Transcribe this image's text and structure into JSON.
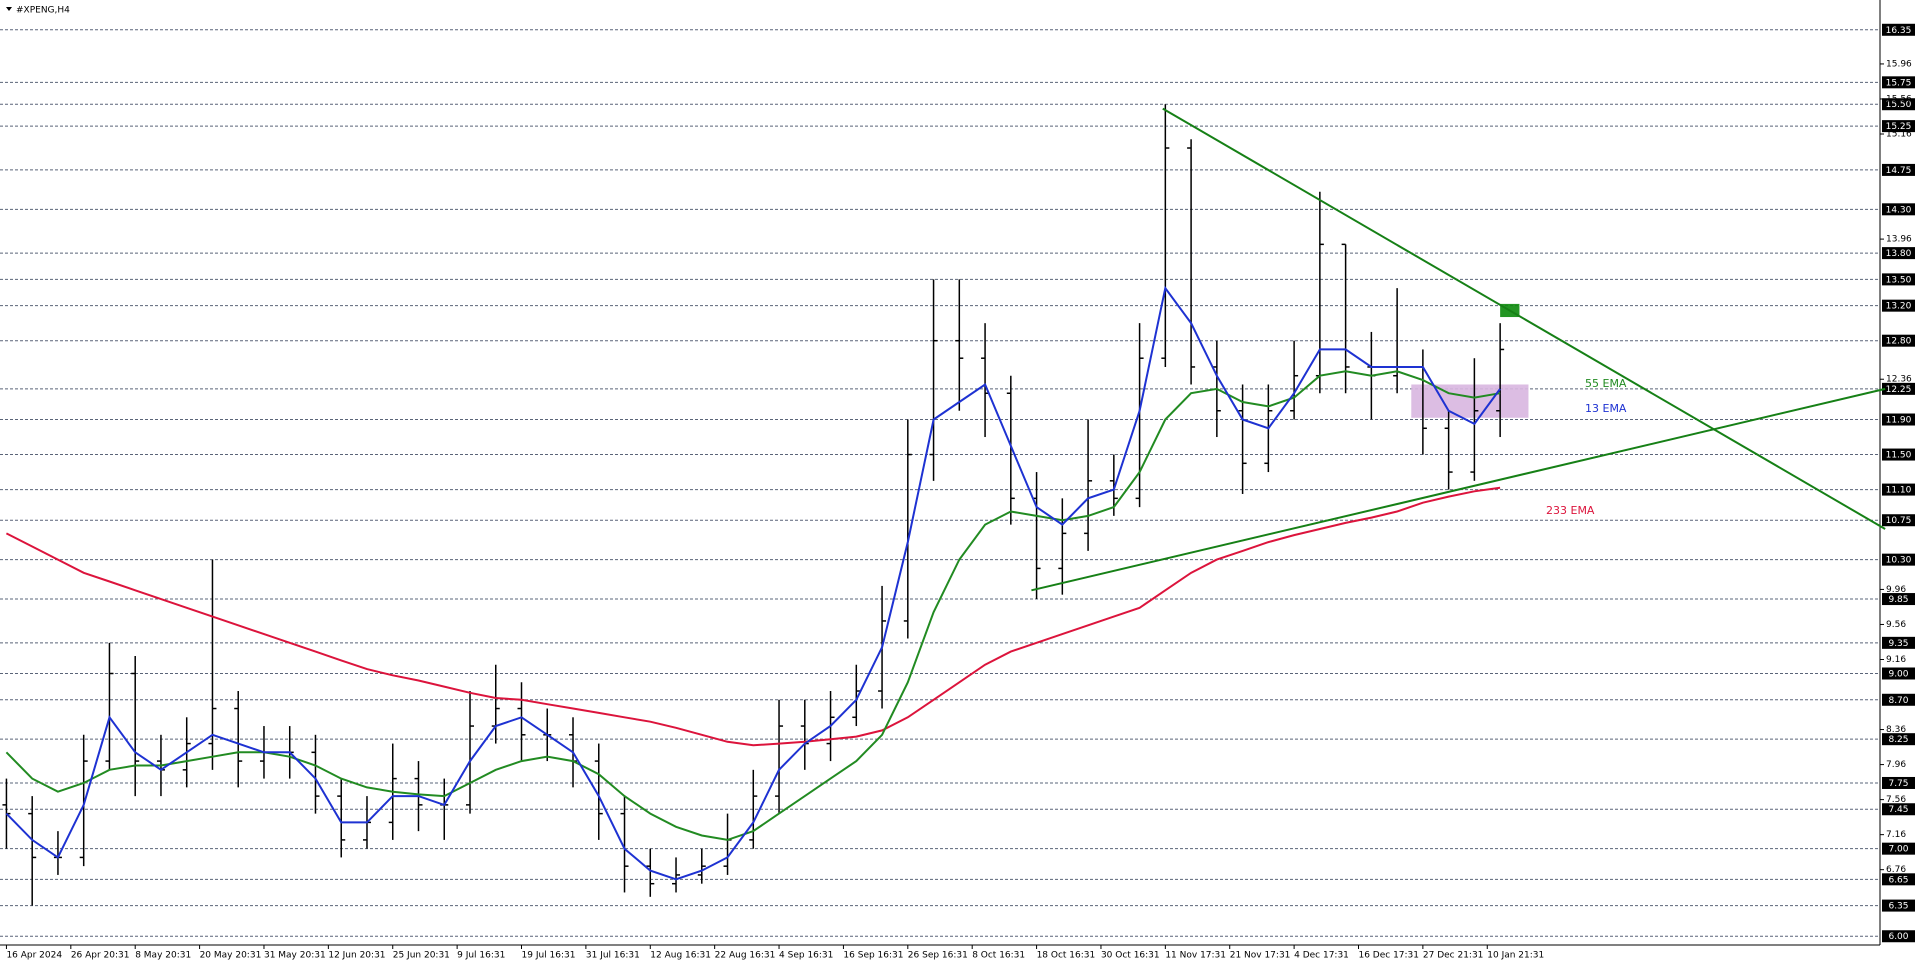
{
  "chart_data": {
    "type": "ohlc",
    "title": "#XPENG,H4",
    "x": [
      0,
      2,
      4,
      6,
      8,
      10,
      12,
      14,
      16,
      18,
      20,
      22,
      24,
      26,
      28,
      30,
      32,
      34,
      36,
      38,
      40,
      42,
      44,
      46,
      48,
      50,
      52,
      54,
      56,
      58,
      60,
      62,
      64,
      66,
      68,
      70,
      72,
      74,
      76,
      78,
      80,
      82,
      84,
      86,
      88,
      90,
      92,
      94,
      96,
      98,
      100,
      102,
      104,
      106,
      108,
      110,
      112,
      114,
      116
    ],
    "open": [
      7.5,
      7.4,
      6.9,
      6.9,
      8.0,
      9.0,
      8.0,
      7.9,
      8.2,
      8.6,
      8.0,
      8.1,
      8.1,
      7.6,
      7.1,
      7.3,
      7.8,
      7.5,
      7.5,
      8.4,
      8.6,
      8.3,
      8.3,
      8.0,
      7.4,
      6.8,
      6.6,
      6.7,
      6.8,
      7.1,
      7.6,
      8.4,
      8.2,
      8.5,
      8.8,
      9.6,
      11.5,
      12.8,
      12.6,
      12.2,
      11.0,
      10.2,
      10.6,
      11.2,
      11.0,
      12.6,
      15.0,
      12.5,
      12.0,
      11.4,
      12.0,
      12.4,
      13.9,
      12.5,
      12.4,
      12.5,
      11.8,
      11.3,
      12.0
    ],
    "high": [
      7.8,
      7.6,
      7.2,
      8.3,
      9.35,
      9.2,
      8.3,
      8.5,
      10.3,
      8.8,
      8.4,
      8.4,
      8.3,
      7.8,
      7.6,
      8.2,
      8.0,
      7.8,
      8.8,
      9.1,
      8.9,
      8.6,
      8.5,
      8.2,
      7.6,
      7.0,
      6.9,
      7.0,
      7.4,
      7.9,
      8.7,
      8.7,
      8.8,
      9.1,
      10.0,
      11.9,
      13.5,
      13.5,
      13.0,
      12.4,
      11.3,
      11.0,
      11.9,
      11.5,
      13.0,
      15.5,
      15.1,
      12.8,
      12.3,
      12.3,
      12.8,
      14.5,
      13.9,
      12.9,
      13.4,
      12.7,
      12.0,
      12.6,
      13.0
    ],
    "low": [
      7.0,
      6.35,
      6.7,
      6.8,
      7.9,
      7.6,
      7.6,
      7.7,
      7.9,
      7.7,
      7.8,
      7.8,
      7.4,
      6.9,
      7.0,
      7.1,
      7.2,
      7.1,
      7.4,
      8.2,
      8.0,
      8.0,
      7.7,
      7.1,
      6.5,
      6.45,
      6.5,
      6.6,
      6.7,
      7.0,
      7.4,
      7.9,
      8.0,
      8.4,
      8.6,
      9.4,
      11.2,
      12.0,
      11.7,
      10.7,
      9.85,
      9.9,
      10.4,
      10.8,
      10.9,
      12.5,
      12.3,
      11.7,
      11.05,
      11.3,
      11.9,
      12.2,
      12.2,
      11.9,
      12.2,
      11.5,
      11.1,
      11.2,
      11.7
    ],
    "close": [
      7.4,
      6.9,
      6.9,
      8.0,
      9.0,
      8.0,
      7.9,
      8.2,
      8.6,
      8.0,
      8.1,
      8.1,
      7.6,
      7.1,
      7.3,
      7.8,
      7.5,
      7.5,
      8.4,
      8.6,
      8.3,
      8.3,
      8.0,
      7.4,
      6.8,
      6.6,
      6.7,
      6.8,
      7.1,
      7.6,
      8.4,
      8.2,
      8.5,
      8.8,
      9.6,
      11.5,
      12.8,
      12.6,
      12.2,
      11.0,
      10.2,
      10.6,
      11.2,
      11.0,
      12.6,
      15.0,
      12.5,
      12.0,
      11.4,
      12.0,
      12.4,
      13.9,
      12.5,
      12.4,
      12.5,
      11.8,
      11.3,
      12.0,
      12.7
    ],
    "bar_color": "#000000",
    "series": [
      {
        "name": "233 EMA",
        "color": "#dc143c",
        "values": [
          10.6,
          10.45,
          10.3,
          10.15,
          10.05,
          9.95,
          9.85,
          9.75,
          9.65,
          9.55,
          9.45,
          9.35,
          9.25,
          9.15,
          9.05,
          8.98,
          8.92,
          8.85,
          8.78,
          8.72,
          8.7,
          8.65,
          8.6,
          8.55,
          8.5,
          8.45,
          8.38,
          8.3,
          8.22,
          8.18,
          8.2,
          8.22,
          8.25,
          8.28,
          8.35,
          8.5,
          8.7,
          8.9,
          9.1,
          9.25,
          9.35,
          9.45,
          9.55,
          9.65,
          9.75,
          9.95,
          10.15,
          10.3,
          10.4,
          10.5,
          10.58,
          10.65,
          10.72,
          10.78,
          10.85,
          10.95,
          11.02,
          11.08,
          11.12
        ]
      },
      {
        "name": "55 EMA",
        "color": "#228b22",
        "values": [
          8.1,
          7.8,
          7.65,
          7.75,
          7.9,
          7.95,
          7.95,
          8.0,
          8.05,
          8.1,
          8.1,
          8.05,
          7.95,
          7.8,
          7.7,
          7.65,
          7.62,
          7.6,
          7.75,
          7.9,
          8.0,
          8.05,
          8.0,
          7.85,
          7.6,
          7.4,
          7.25,
          7.15,
          7.1,
          7.2,
          7.4,
          7.6,
          7.8,
          8.0,
          8.3,
          8.9,
          9.7,
          10.3,
          10.7,
          10.85,
          10.8,
          10.75,
          10.8,
          10.9,
          11.3,
          11.9,
          12.2,
          12.25,
          12.1,
          12.05,
          12.15,
          12.4,
          12.45,
          12.4,
          12.45,
          12.35,
          12.2,
          12.15,
          12.2
        ]
      },
      {
        "name": "13 EMA",
        "color": "#1e32d2",
        "values": [
          7.4,
          7.1,
          6.9,
          7.5,
          8.5,
          8.1,
          7.9,
          8.1,
          8.3,
          8.2,
          8.1,
          8.1,
          7.8,
          7.3,
          7.3,
          7.6,
          7.6,
          7.5,
          8.0,
          8.4,
          8.5,
          8.3,
          8.1,
          7.6,
          7.0,
          6.75,
          6.65,
          6.75,
          6.9,
          7.3,
          7.9,
          8.2,
          8.4,
          8.7,
          9.3,
          10.5,
          11.9,
          12.1,
          12.3,
          11.6,
          10.9,
          10.7,
          11.0,
          11.1,
          12.0,
          13.4,
          13.0,
          12.4,
          11.9,
          11.8,
          12.2,
          12.7,
          12.7,
          12.5,
          12.5,
          12.5,
          12.0,
          11.85,
          12.25
        ]
      }
    ],
    "trendlines": [
      {
        "color": "#168016",
        "x": [
          89.8,
          145.9
        ],
        "y": [
          15.45,
          10.65
        ]
      },
      {
        "color": "#168016",
        "x": [
          79.6,
          145.9
        ],
        "y": [
          9.95,
          12.25
        ]
      }
    ],
    "zones": [
      {
        "color": "#d8b6e0",
        "x": [
          109.1,
          118.2
        ],
        "y": [
          11.92,
          12.3
        ]
      },
      {
        "color": "#0b8a0b",
        "x": [
          116,
          117.5
        ],
        "y": [
          13.07,
          13.22
        ]
      }
    ],
    "xlim": [
      -0.5,
      145.5
    ],
    "ylim": [
      5.9,
      16.69
    ],
    "xticks": [
      {
        "value": 0,
        "label": "16 Apr 2024"
      },
      {
        "value": 5,
        "label": "26 Apr 20:31"
      },
      {
        "value": 10,
        "label": "8 May 20:31"
      },
      {
        "value": 15,
        "label": "20 May 20:31"
      },
      {
        "value": 20,
        "label": "31 May 20:31"
      },
      {
        "value": 25,
        "label": "12 Jun 20:31"
      },
      {
        "value": 30,
        "label": "25 Jun 20:31"
      },
      {
        "value": 35,
        "label": "9 Jul 16:31"
      },
      {
        "value": 40,
        "label": "19 Jul 16:31"
      },
      {
        "value": 45,
        "label": "31 Jul 16:31"
      },
      {
        "value": 50,
        "label": "12 Aug 16:31"
      },
      {
        "value": 55,
        "label": "22 Aug 16:31"
      },
      {
        "value": 60,
        "label": "4 Sep 16:31"
      },
      {
        "value": 65,
        "label": "16 Sep 16:31"
      },
      {
        "value": 70,
        "label": "26 Sep 16:31"
      },
      {
        "value": 75,
        "label": "8 Oct 16:31"
      },
      {
        "value": 80,
        "label": "18 Oct 16:31"
      },
      {
        "value": 85,
        "label": "30 Oct 16:31"
      },
      {
        "value": 90,
        "label": "11 Nov 17:31"
      },
      {
        "value": 95,
        "label": "21 Nov 17:31"
      },
      {
        "value": 100,
        "label": "4 Dec 17:31"
      },
      {
        "value": 105,
        "label": "16 Dec 17:31"
      },
      {
        "value": 110,
        "label": "27 Dec 21:31"
      },
      {
        "value": 115,
        "label": "10 Jan 21:31"
      }
    ],
    "yticks": [
      15.96,
      15.56,
      15.16,
      13.96,
      12.36,
      9.96,
      9.56,
      9.16,
      8.36,
      7.96,
      7.56,
      7.16,
      6.76
    ],
    "levels": [
      16.35,
      15.75,
      {
        "value": 15.5,
        "label": "15.50"
      },
      15.25,
      14.75,
      {
        "value": 14.3,
        "label": "14.30"
      },
      {
        "value": 13.8,
        "label": "13.80"
      },
      {
        "value": 13.5,
        "label": "13.50"
      },
      {
        "value": 13.2,
        "label": "13.20"
      },
      {
        "value": 12.8,
        "label": "12.80"
      },
      12.25,
      {
        "value": 11.9,
        "label": "11.90"
      },
      {
        "value": 11.5,
        "label": "11.50"
      },
      {
        "value": 11.1,
        "label": "11.10"
      },
      10.75,
      {
        "value": 10.3,
        "label": "10.30"
      },
      9.85,
      9.35,
      {
        "value": 9.0,
        "label": "9.00"
      },
      {
        "value": 8.7,
        "label": "8.70"
      },
      8.25,
      7.75,
      7.45,
      {
        "value": 7.0,
        "label": "7.00"
      },
      6.65,
      6.35,
      {
        "value": 6.0,
        "label": "6.00"
      }
    ]
  }
}
